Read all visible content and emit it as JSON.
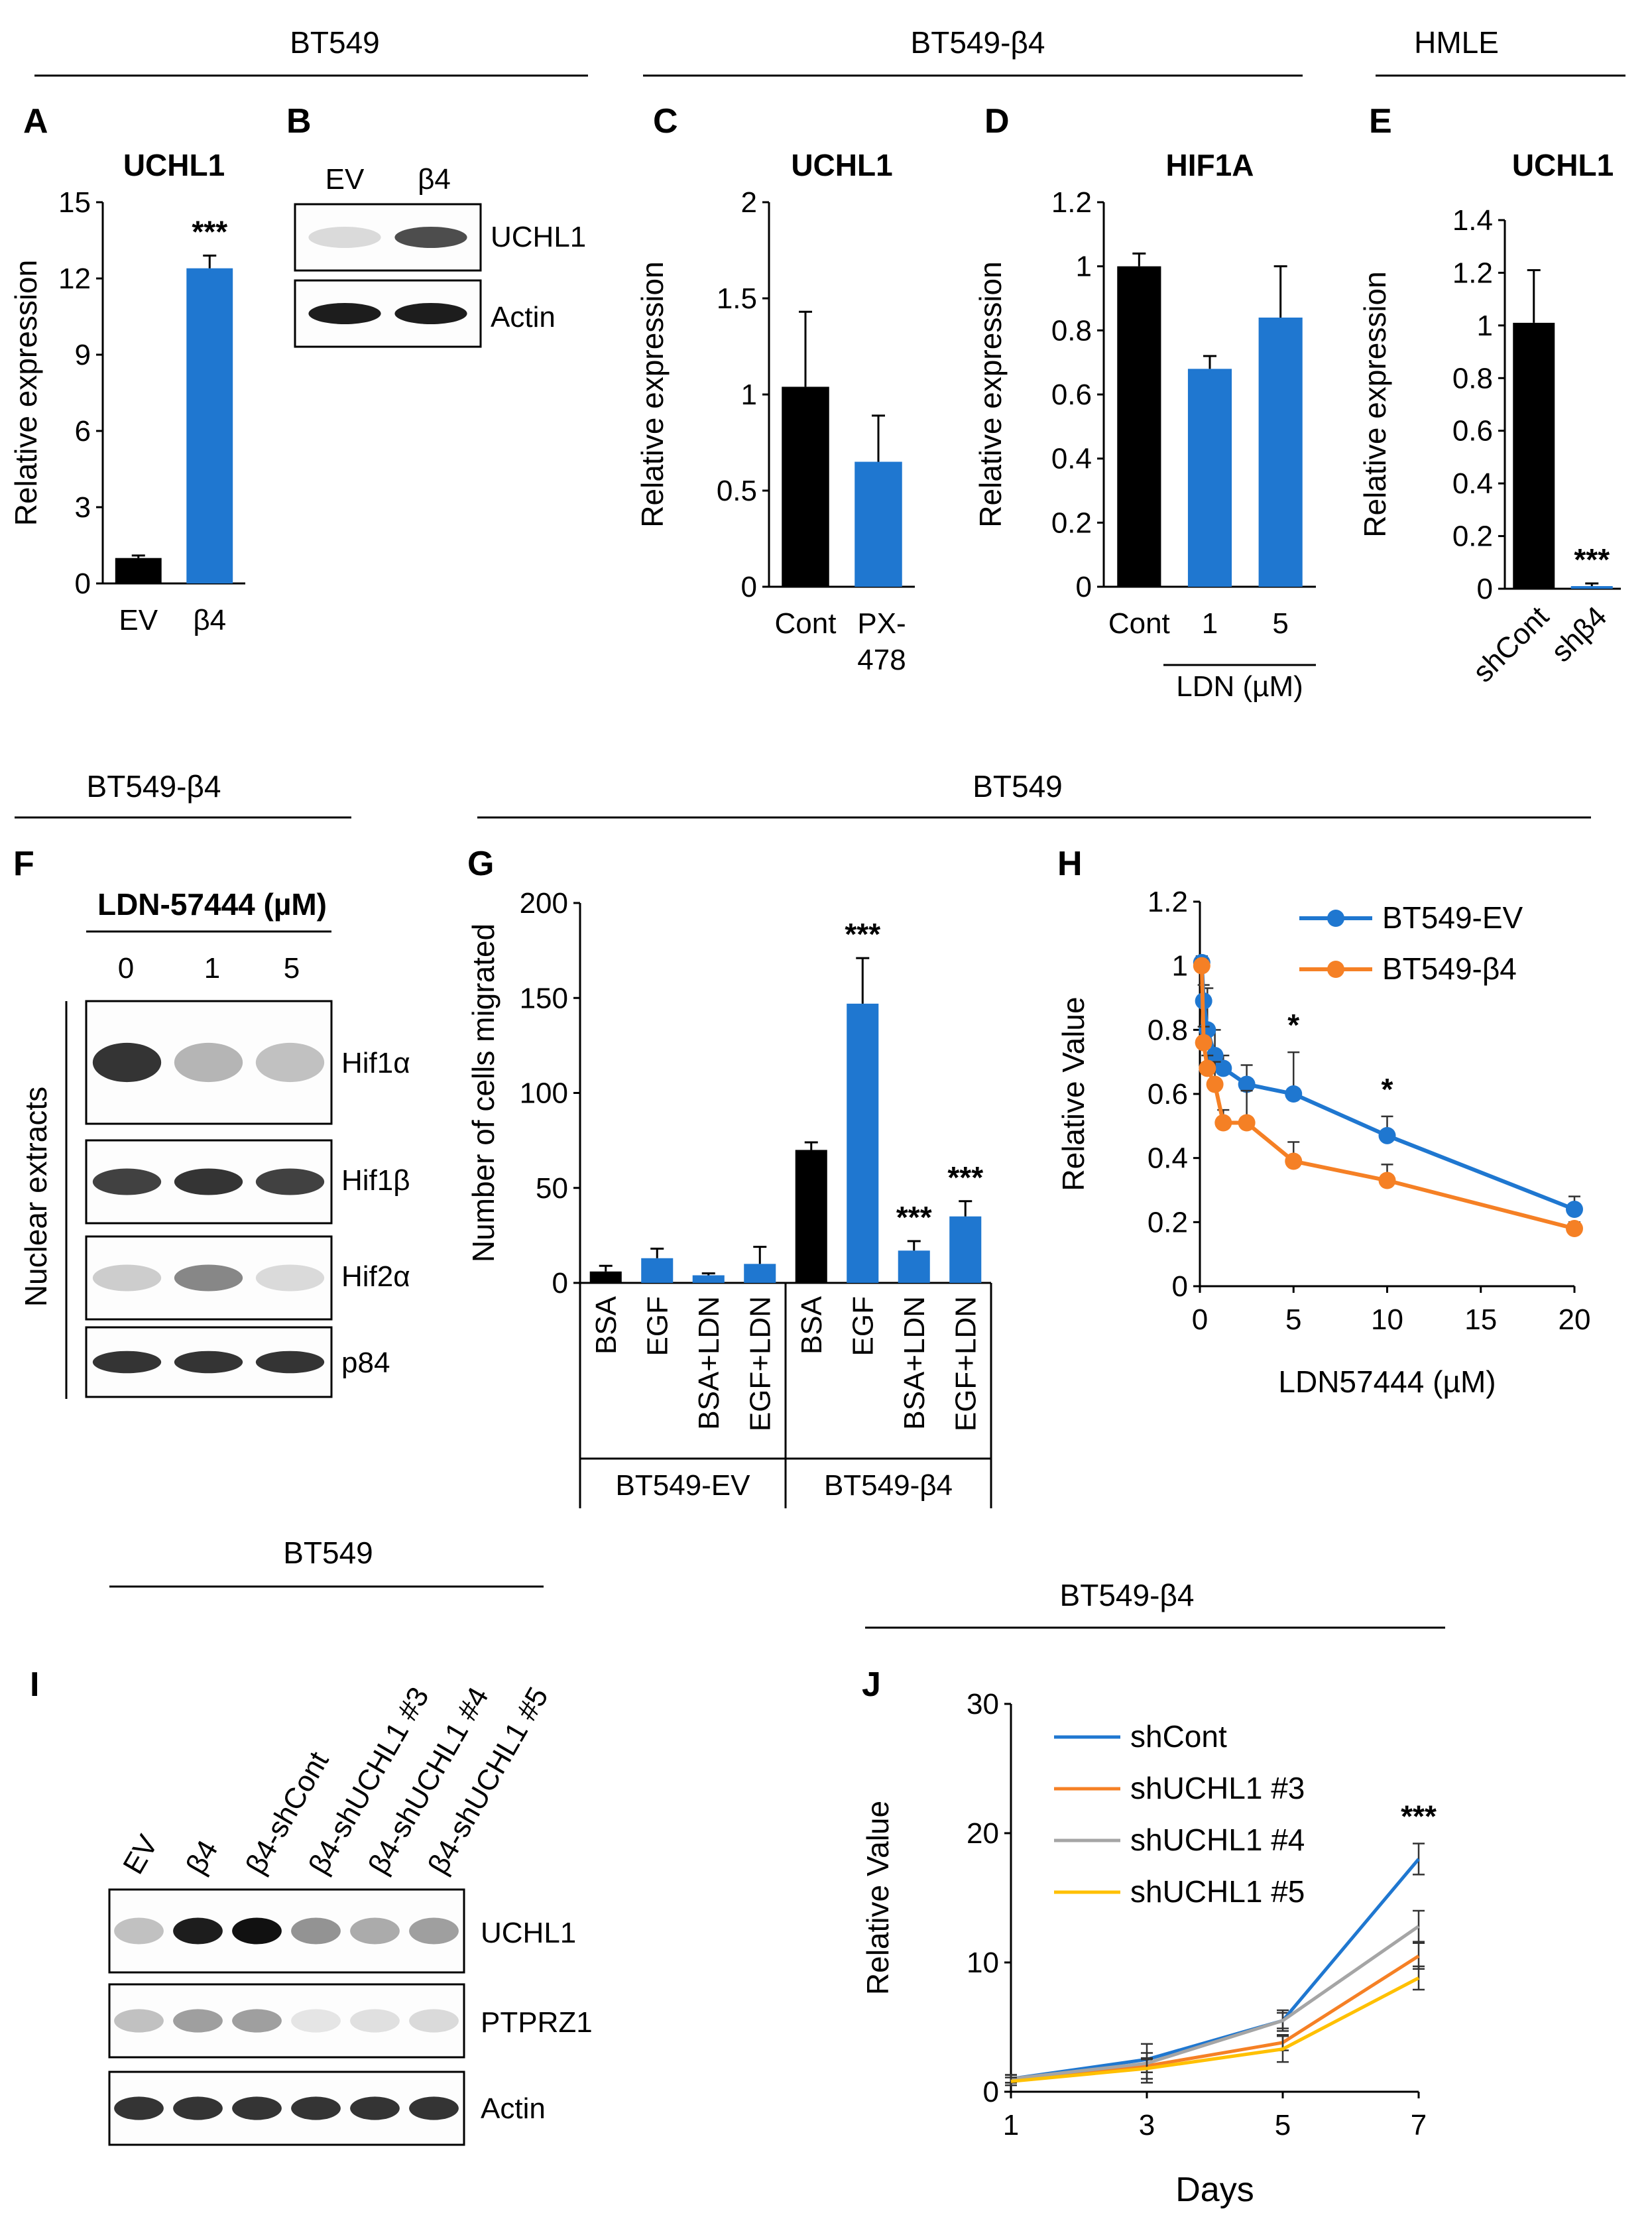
{
  "colors": {
    "black": "#000000",
    "blue": "#1f77d0",
    "orange": "#f58025",
    "gray": "#a5a5a5",
    "yellow": "#ffc000"
  },
  "group_headers": {
    "top_bt549": "BT549",
    "top_bt549_b4": "BT549-β4",
    "top_hmle": "HMLE",
    "mid_bt549_b4": "BT549-β4",
    "mid_bt549": "BT549",
    "bot_bt549": "BT549",
    "bot_bt549_b4": "BT549-β4"
  },
  "panels": {
    "A": "A",
    "B": "B",
    "C": "C",
    "D": "D",
    "E": "E",
    "F": "F",
    "G": "G",
    "H": "H",
    "I": "I",
    "J": "J"
  },
  "blot_B": {
    "lanes": [
      "EV",
      "β4"
    ],
    "bands": [
      "UCHL1",
      "Actin"
    ],
    "intensity": [
      [
        0.15,
        0.75
      ],
      [
        0.95,
        0.95
      ]
    ]
  },
  "blot_F": {
    "title": "LDN-57444 (µM)",
    "lanes": [
      "0",
      "1",
      "5"
    ],
    "side_label": "Nuclear extracts",
    "bands": [
      "Hif1α",
      "Hif1β",
      "Hif2α",
      "p84"
    ],
    "intensity": [
      [
        0.85,
        0.3,
        0.25
      ],
      [
        0.8,
        0.85,
        0.8
      ],
      [
        0.2,
        0.5,
        0.15
      ],
      [
        0.85,
        0.85,
        0.85
      ]
    ]
  },
  "blot_I": {
    "lanes": [
      "EV",
      "β4",
      "β4-shCont",
      "β4-shUCHL1 #3",
      "β4-shUCHL1 #4",
      "β4-shUCHL1 #5"
    ],
    "bands": [
      "UCHL1",
      "PTPRZ1",
      "Actin"
    ],
    "intensity": [
      [
        0.25,
        0.95,
        1.0,
        0.45,
        0.35,
        0.4
      ],
      [
        0.25,
        0.4,
        0.4,
        0.1,
        0.12,
        0.15
      ],
      [
        0.85,
        0.85,
        0.85,
        0.85,
        0.85,
        0.85
      ]
    ]
  },
  "chart_data": [
    {
      "id": "A",
      "type": "bar",
      "title": "UCHL1",
      "ylabel": "Relative expression",
      "ylim": [
        0,
        15
      ],
      "yticks": [
        0,
        3,
        6,
        9,
        12,
        15
      ],
      "categories": [
        "EV",
        "β4"
      ],
      "values": [
        1.0,
        12.4
      ],
      "errors": [
        0.1,
        0.5
      ],
      "colors": [
        "black",
        "blue"
      ],
      "stars": [
        "",
        "***"
      ]
    },
    {
      "id": "C",
      "type": "bar",
      "title": "UCHL1",
      "ylabel": "Relative expression",
      "ylim": [
        0,
        2
      ],
      "yticks": [
        "0",
        "0.5",
        "1",
        "1.5",
        "2"
      ],
      "categories": [
        "Cont",
        "PX-478"
      ],
      "values": [
        1.04,
        0.65
      ],
      "errors": [
        0.39,
        0.24
      ],
      "colors": [
        "black",
        "blue"
      ],
      "stars": [
        "",
        ""
      ]
    },
    {
      "id": "D",
      "type": "bar",
      "title": "HIF1A",
      "ylabel": "Relative expression",
      "ylim": [
        0,
        1.2
      ],
      "yticks": [
        "0",
        "0.2",
        "0.4",
        "0.6",
        "0.8",
        "1",
        "1.2"
      ],
      "categories": [
        "Cont",
        "1",
        "5"
      ],
      "values": [
        1.0,
        0.68,
        0.84
      ],
      "errors": [
        0.04,
        0.04,
        0.16
      ],
      "colors": [
        "black",
        "blue",
        "blue"
      ],
      "stars": [
        "",
        "",
        ""
      ],
      "group_label": "LDN (µM)"
    },
    {
      "id": "E",
      "type": "bar",
      "title": "UCHL1",
      "ylabel": "Relative expression",
      "ylim": [
        0,
        1.4
      ],
      "yticks": [
        "0",
        "0.2",
        "0.4",
        "0.6",
        "0.8",
        "1",
        "1.2",
        "1.4"
      ],
      "categories": [
        "shCont",
        "shβ4"
      ],
      "values": [
        1.01,
        0.01
      ],
      "errors": [
        0.2,
        0.01
      ],
      "colors": [
        "black",
        "blue"
      ],
      "stars": [
        "",
        "***"
      ]
    },
    {
      "id": "G",
      "type": "bar",
      "ylabel": "Number of cells migrated",
      "ylim": [
        0,
        200
      ],
      "yticks": [
        "0",
        "50",
        "100",
        "150",
        "200"
      ],
      "categories": [
        "BSA",
        "EGF",
        "BSA+LDN",
        "EGF+LDN",
        "BSA",
        "EGF",
        "BSA+LDN",
        "EGF+LDN"
      ],
      "values": [
        6,
        13,
        4,
        10,
        70,
        147,
        17,
        35
      ],
      "errors": [
        3,
        5,
        1,
        9,
        4,
        24,
        5,
        8
      ],
      "colors": [
        "black",
        "blue",
        "blue",
        "blue",
        "black",
        "blue",
        "blue",
        "blue"
      ],
      "stars": [
        "",
        "",
        "",
        "",
        "",
        "***",
        "***",
        "***"
      ],
      "groups": [
        "BT549-EV",
        "BT549-β4"
      ]
    },
    {
      "id": "H",
      "type": "line",
      "xlabel": "LDN57444 (µM)",
      "ylabel": "Relative Value",
      "xlim": [
        0,
        20
      ],
      "ylim": [
        0,
        1.2
      ],
      "xticks": [
        "0",
        "5",
        "10",
        "15",
        "20"
      ],
      "yticks": [
        "0",
        "0.2",
        "0.4",
        "0.6",
        "0.8",
        "1",
        "1.2"
      ],
      "series": [
        {
          "name": "BT549-EV",
          "color": "blue",
          "x": [
            0.1,
            0.2,
            0.4,
            0.8,
            1.25,
            2.5,
            5,
            10,
            20
          ],
          "y": [
            1.01,
            0.89,
            0.8,
            0.72,
            0.68,
            0.63,
            0.6,
            0.47,
            0.24
          ],
          "err": [
            0.02,
            0.05,
            0.13,
            0.08,
            0.04,
            0.06,
            0.13,
            0.06,
            0.04
          ]
        },
        {
          "name": "BT549-β4",
          "color": "orange",
          "x": [
            0.1,
            0.2,
            0.4,
            0.8,
            1.25,
            2.5,
            5,
            10,
            20
          ],
          "y": [
            1.0,
            0.76,
            0.68,
            0.63,
            0.51,
            0.51,
            0.39,
            0.33,
            0.18
          ],
          "err": [
            0.02,
            0.05,
            0.04,
            0.07,
            0.04,
            0.1,
            0.06,
            0.05,
            0.02
          ]
        }
      ],
      "stars": [
        {
          "x": 5,
          "label": "*"
        },
        {
          "x": 10,
          "label": "*"
        }
      ]
    },
    {
      "id": "J",
      "type": "line",
      "xlabel": "Days",
      "ylabel": "Relative Value",
      "xlim": [
        1,
        7
      ],
      "ylim": [
        0,
        30
      ],
      "xticks": [
        "1",
        "3",
        "5",
        "7"
      ],
      "yticks": [
        "0",
        "10",
        "20",
        "30"
      ],
      "series": [
        {
          "name": "shCont",
          "color": "blue",
          "x": [
            1,
            3,
            5,
            7
          ],
          "y": [
            1,
            2.5,
            5.5,
            18
          ],
          "err": [
            0.3,
            0.5,
            0.6,
            1.2
          ]
        },
        {
          "name": "shUCHL1 #3",
          "color": "orange",
          "x": [
            1,
            3,
            5,
            7
          ],
          "y": [
            1,
            2,
            3.8,
            10.5
          ],
          "err": [
            0.3,
            0.5,
            0.6,
            1.0
          ]
        },
        {
          "name": "shUCHL1 #4",
          "color": "gray",
          "x": [
            1,
            3,
            5,
            7
          ],
          "y": [
            1,
            2.2,
            5.5,
            12.8
          ],
          "err": [
            0.3,
            1.5,
            0.8,
            1.2
          ]
        },
        {
          "name": "shUCHL1 #5",
          "color": "yellow",
          "x": [
            1,
            3,
            5,
            7
          ],
          "y": [
            0.8,
            1.8,
            3.3,
            8.8
          ],
          "err": [
            0.3,
            0.8,
            1.0,
            0.9
          ]
        }
      ],
      "stars": [
        {
          "x": 7,
          "label": "***"
        }
      ]
    }
  ]
}
